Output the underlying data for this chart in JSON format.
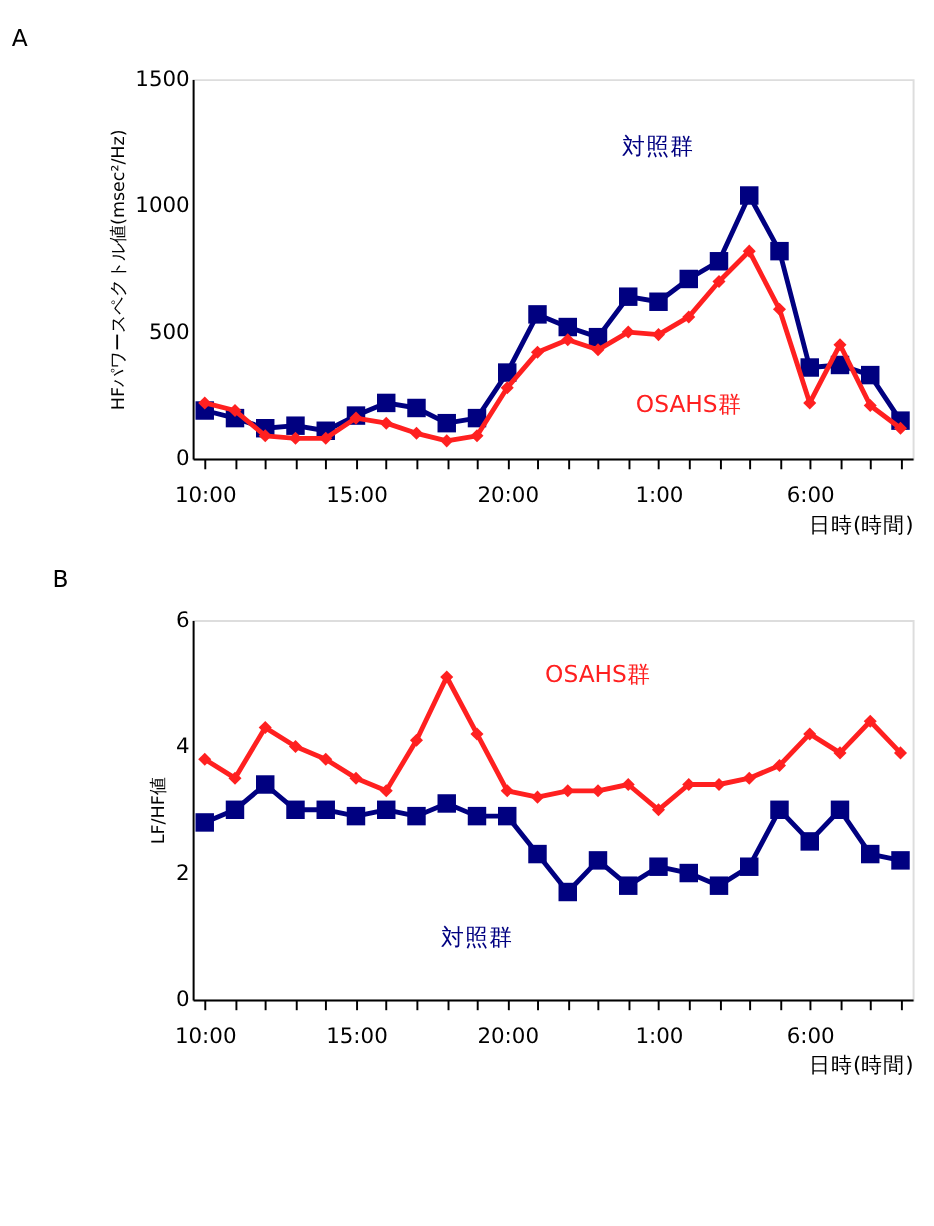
{
  "chart_data": [
    {
      "type": "line",
      "title": "A",
      "xlabel": "日時(時間)",
      "ylabel": "HFパワースペクトル値(msec²/Hz)",
      "categories": [
        "10:00",
        null,
        null,
        null,
        null,
        "15:00",
        null,
        null,
        null,
        null,
        "20:00",
        null,
        null,
        null,
        null,
        "1:00",
        null,
        null,
        null,
        null,
        "6:00",
        null,
        null,
        null
      ],
      "ylim": [
        0,
        1500
      ],
      "yticks": [
        0,
        500,
        1000,
        1500
      ],
      "grid": false,
      "legend": false,
      "line_style": "solid",
      "series": [
        {
          "name": "対照群",
          "color": "#000080",
          "marker": "square",
          "values": [
            190,
            160,
            120,
            130,
            110,
            170,
            220,
            200,
            140,
            160,
            340,
            570,
            520,
            480,
            640,
            620,
            710,
            780,
            1040,
            820,
            360,
            370,
            330,
            150
          ]
        },
        {
          "name": "OSAHS群",
          "color": "#ff2020",
          "marker": "diamond",
          "values": [
            220,
            190,
            90,
            80,
            80,
            160,
            140,
            100,
            70,
            90,
            280,
            420,
            470,
            430,
            500,
            490,
            560,
            700,
            820,
            590,
            220,
            450,
            210,
            120
          ]
        }
      ]
    },
    {
      "type": "line",
      "title": "B",
      "xlabel": "日時(時間)",
      "ylabel": "LF/HF値",
      "categories": [
        "10:00",
        null,
        null,
        null,
        null,
        "15:00",
        null,
        null,
        null,
        null,
        "20:00",
        null,
        null,
        null,
        null,
        "1:00",
        null,
        null,
        null,
        null,
        "6:00",
        null,
        null,
        null
      ],
      "ylim": [
        0,
        6
      ],
      "yticks": [
        0,
        2,
        4,
        6
      ],
      "grid": false,
      "legend": false,
      "line_style": "solid",
      "series": [
        {
          "name": "対照群",
          "color": "#000080",
          "marker": "square",
          "values": [
            2.8,
            3.0,
            3.4,
            3.0,
            3.0,
            2.9,
            3.0,
            2.9,
            3.1,
            2.9,
            2.9,
            2.3,
            1.7,
            2.2,
            1.8,
            2.1,
            2.0,
            1.8,
            2.1,
            3.0,
            2.5,
            3.0,
            2.3,
            2.2
          ]
        },
        {
          "name": "OSAHS群",
          "color": "#ff2020",
          "marker": "diamond",
          "values": [
            3.8,
            3.5,
            4.3,
            4.0,
            3.8,
            3.5,
            3.3,
            4.1,
            5.1,
            4.2,
            3.3,
            3.2,
            3.3,
            3.3,
            3.4,
            3.0,
            3.4,
            3.4,
            3.5,
            3.7,
            4.2,
            3.9,
            4.4,
            3.9
          ]
        }
      ]
    }
  ]
}
